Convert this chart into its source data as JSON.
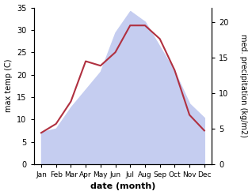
{
  "months": [
    "Jan",
    "Feb",
    "Mar",
    "Apr",
    "May",
    "Jun",
    "Jul",
    "Aug",
    "Sep",
    "Oct",
    "Nov",
    "Dec"
  ],
  "temperature": [
    7.0,
    9.0,
    14.0,
    23.0,
    22.0,
    25.0,
    31.0,
    31.0,
    28.0,
    21.0,
    11.0,
    7.5
  ],
  "precipitation": [
    4.5,
    5.0,
    8.0,
    10.5,
    13.0,
    18.5,
    21.5,
    20.0,
    16.5,
    13.0,
    8.5,
    6.5
  ],
  "temp_color": "#b03040",
  "precip_fill_color": "#c5cdf0",
  "temp_ylim": [
    0,
    35
  ],
  "precip_ylim": [
    0,
    22
  ],
  "temp_yticks": [
    0,
    5,
    10,
    15,
    20,
    25,
    30,
    35
  ],
  "precip_yticks": [
    0,
    5,
    10,
    15,
    20
  ],
  "xlabel": "date (month)",
  "ylabel_left": "max temp (C)",
  "ylabel_right": "med. precipitation (kg/m2)",
  "background_color": "#ffffff",
  "fig_width": 3.18,
  "fig_height": 2.47,
  "dpi": 100
}
